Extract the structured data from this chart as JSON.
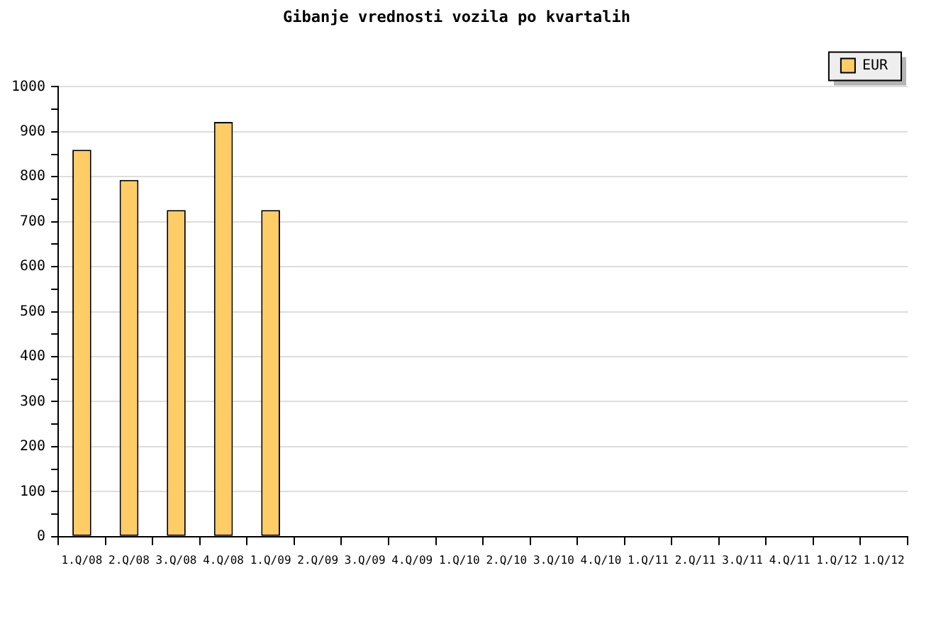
{
  "chart_data": {
    "type": "bar",
    "title": "Gibanje vrednosti vozila po kvartalih",
    "categories": [
      "1.Q/08",
      "2.Q/08",
      "3.Q/08",
      "4.Q/08",
      "1.Q/09",
      "2.Q/09",
      "3.Q/09",
      "4.Q/09",
      "1.Q/10",
      "2.Q/10",
      "3.Q/10",
      "4.Q/10",
      "1.Q/11",
      "2.Q/11",
      "3.Q/11",
      "4.Q/11",
      "1.Q/12",
      "1.Q/12"
    ],
    "series": [
      {
        "name": "EUR",
        "color": "#ffcc66",
        "values": [
          860,
          793,
          726,
          922,
          726,
          null,
          null,
          null,
          null,
          null,
          null,
          null,
          null,
          null,
          null,
          null,
          null,
          null
        ]
      }
    ],
    "ylim": [
      0,
      1000
    ],
    "yticks": [
      0,
      {
        "value": 50,
        "label": null
      },
      100,
      {
        "value": 150,
        "label": null
      },
      200,
      {
        "value": 250,
        "label": null
      },
      300,
      {
        "value": 350,
        "label": null
      },
      400,
      {
        "value": 450,
        "label": null
      },
      500,
      {
        "value": 550,
        "label": null
      },
      600,
      {
        "value": 650,
        "label": null
      },
      700,
      {
        "value": 750,
        "label": null
      },
      800,
      {
        "value": 850,
        "label": null
      },
      900,
      {
        "value": 950,
        "label": null
      },
      1000
    ],
    "grid": "y",
    "legend": "top right"
  }
}
